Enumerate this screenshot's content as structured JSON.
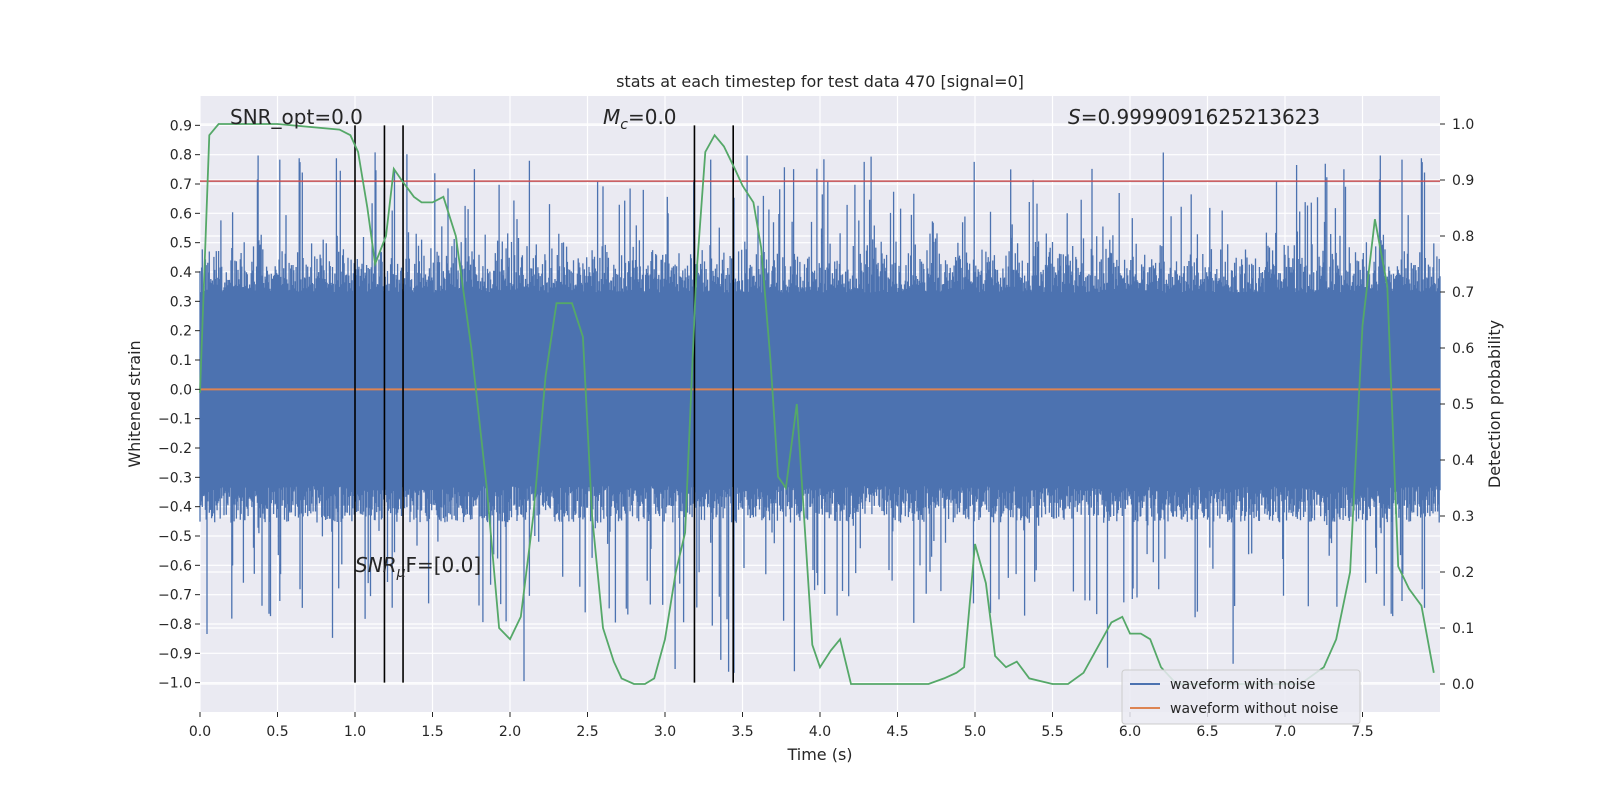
{
  "chart_data": {
    "type": "line",
    "title": "stats at each timestep for test data 470 [signal=0]",
    "xlabel": "Time (s)",
    "ylabel": "Whitened strain",
    "y2label": "Detection probability",
    "xlim": [
      0.0,
      8.0
    ],
    "ylim": [
      -1.1,
      1.0
    ],
    "y2lim": [
      -0.05,
      1.05
    ],
    "x_ticks": [
      "0.0",
      "0.5",
      "1.0",
      "1.5",
      "2.0",
      "2.5",
      "3.0",
      "3.5",
      "4.0",
      "4.5",
      "5.0",
      "5.5",
      "6.0",
      "6.5",
      "7.0",
      "7.5"
    ],
    "y_ticks": [
      "0.9",
      "0.8",
      "0.7",
      "0.6",
      "0.5",
      "0.4",
      "0.3",
      "0.2",
      "0.1",
      "0.0",
      "−0.1",
      "−0.2",
      "−0.3",
      "−0.4",
      "−0.5",
      "−0.6",
      "−0.7",
      "−0.8",
      "−0.9",
      "−1.0"
    ],
    "y2_ticks": [
      "1.0",
      "0.9",
      "0.8",
      "0.7",
      "0.6",
      "0.5",
      "0.4",
      "0.3",
      "0.2",
      "0.1",
      "0.0"
    ],
    "grid": true,
    "legend_position": "lower-right",
    "annotations": {
      "snr_opt": "SNR_opt=0.0",
      "mc": "M",
      "mc_sub": "c",
      "mc_value": "=0.0",
      "s_label": "S",
      "s_value": "=0.9999091625213623",
      "snr_mf_a": "SNR",
      "snr_mf_sub": "μ",
      "snr_mf_b": "F=[0.0]"
    },
    "series": [
      {
        "name": "waveform with noise",
        "color": "#4c72b0",
        "envelope_typical": 0.33,
        "spike_max": 0.82
      },
      {
        "name": "waveform without noise",
        "color": "#dd8452",
        "values": [
          0.0,
          0.0
        ]
      },
      {
        "axis": "right",
        "color": "#55a868",
        "x": [
          0.0,
          0.06,
          0.12,
          0.5,
          0.9,
          0.97,
          1.02,
          1.08,
          1.13,
          1.2,
          1.25,
          1.3,
          1.38,
          1.43,
          1.5,
          1.57,
          1.65,
          1.75,
          1.85,
          1.93,
          2.0,
          2.07,
          2.15,
          2.23,
          2.3,
          2.4,
          2.47,
          2.53,
          2.6,
          2.67,
          2.72,
          2.8,
          2.87,
          2.93,
          3.0,
          3.07,
          3.13,
          3.2,
          3.26,
          3.32,
          3.38,
          3.45,
          3.5,
          3.57,
          3.62,
          3.68,
          3.73,
          3.78,
          3.85,
          3.95,
          4.0,
          4.07,
          4.13,
          4.2,
          4.3,
          4.45,
          4.6,
          4.7,
          4.8,
          4.88,
          4.93,
          5.0,
          5.07,
          5.13,
          5.2,
          5.27,
          5.35,
          5.5,
          5.6,
          5.7,
          5.8,
          5.88,
          5.95,
          6.0,
          6.07,
          6.13,
          6.2,
          6.3,
          6.5,
          6.7,
          6.9,
          7.1,
          7.25,
          7.33,
          7.42,
          7.5,
          7.58,
          7.66,
          7.73,
          7.8,
          7.88,
          7.96
        ],
        "values": [
          0.52,
          0.98,
          1.0,
          1.0,
          0.99,
          0.98,
          0.95,
          0.85,
          0.75,
          0.8,
          0.92,
          0.9,
          0.87,
          0.86,
          0.86,
          0.87,
          0.8,
          0.6,
          0.35,
          0.1,
          0.08,
          0.12,
          0.3,
          0.55,
          0.68,
          0.68,
          0.62,
          0.3,
          0.1,
          0.04,
          0.01,
          0.0,
          0.0,
          0.01,
          0.08,
          0.2,
          0.27,
          0.72,
          0.95,
          0.98,
          0.96,
          0.92,
          0.89,
          0.86,
          0.78,
          0.58,
          0.37,
          0.35,
          0.5,
          0.07,
          0.03,
          0.06,
          0.08,
          0.0,
          0.0,
          0.0,
          0.0,
          0.0,
          0.01,
          0.02,
          0.03,
          0.25,
          0.18,
          0.05,
          0.03,
          0.04,
          0.01,
          0.0,
          0.0,
          0.02,
          0.07,
          0.11,
          0.12,
          0.09,
          0.09,
          0.08,
          0.03,
          0.0,
          0.0,
          0.0,
          0.0,
          0.0,
          0.03,
          0.08,
          0.2,
          0.64,
          0.83,
          0.71,
          0.21,
          0.17,
          0.14,
          0.02
        ]
      }
    ],
    "hlines": [
      {
        "y": 0.71,
        "color": "#c44e52"
      }
    ],
    "vlines": {
      "x": [
        1.0,
        1.19,
        1.31,
        3.19,
        3.44
      ],
      "y_from": -1.0,
      "y_to": 0.9,
      "color": "#000000"
    }
  },
  "legend": {
    "noise_label": "waveform with noise",
    "clean_label": "waveform without noise"
  }
}
